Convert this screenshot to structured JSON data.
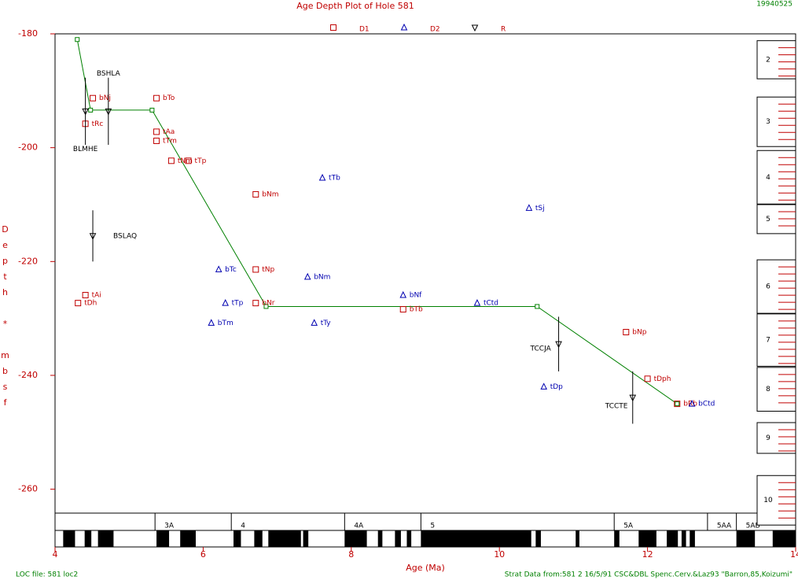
{
  "chart_data": {
    "type": "scatter",
    "title": "Age Depth Plot of Hole 581",
    "date_stamp": "19940525",
    "x_label": "Age (Ma)",
    "y_label": "Depth * mbsf",
    "xlim": [
      4,
      14
    ],
    "ylim": [
      -180,
      -264.2
    ],
    "xticks": [
      4,
      6,
      8,
      10,
      12,
      14
    ],
    "yticks": [
      -180,
      -200,
      -220,
      -240,
      -260
    ],
    "series": [
      {
        "name": "D1",
        "marker": "square",
        "color": "#c00000",
        "labels": [
          "bNj",
          "tRc",
          "bTo",
          "tAa",
          "tTm",
          "tNm",
          "tTp",
          "bNm",
          "tNp",
          "bNr",
          "tAi",
          "tDh",
          "bTb",
          "bNp",
          "tDph",
          "bRb"
        ],
        "x": [
          4.51,
          4.41,
          5.37,
          5.37,
          5.37,
          5.57,
          5.8,
          6.71,
          6.71,
          6.71,
          4.41,
          4.31,
          8.7,
          11.71,
          12.0,
          12.4
        ],
        "y": [
          -191.3,
          -195.8,
          -191.3,
          -197.2,
          -198.8,
          -202.3,
          -202.3,
          -208.2,
          -221.4,
          -227.3,
          -225.9,
          -227.3,
          -228.4,
          -232.4,
          -240.6,
          -245.0
        ]
      },
      {
        "name": "D2",
        "marker": "triangle-up",
        "color": "#0000b0",
        "labels": [
          "tTb",
          "tSj",
          "bTc",
          "tTp",
          "bTm",
          "bNm",
          "tTy",
          "bNf",
          "tCtd",
          "tDp",
          "bCtd"
        ],
        "x": [
          7.61,
          10.4,
          6.21,
          6.3,
          6.11,
          7.41,
          7.5,
          8.7,
          9.7,
          10.6,
          12.6
        ],
        "y": [
          -205.3,
          -210.6,
          -221.4,
          -227.3,
          -230.8,
          -222.7,
          -230.8,
          -225.9,
          -227.3,
          -242.0,
          -245.0
        ]
      },
      {
        "name": "R",
        "marker": "triangle-down",
        "color": "#000000",
        "labels": [
          "BSHLA",
          "BLMHE",
          "BSLAQ",
          "TCCJA",
          "TCCTE"
        ],
        "x": [
          4.72,
          4.41,
          4.51,
          10.8,
          11.8
        ],
        "y": [
          -193.6,
          -193.6,
          -215.5,
          -234.5,
          -243.9
        ],
        "y_error": [
          5.9,
          5.9,
          4.5,
          4.8,
          4.6
        ]
      }
    ],
    "correlation_line": {
      "color": "#008000",
      "x": [
        4.3,
        4.48,
        5.31,
        6.85,
        10.51,
        12.4
      ],
      "y": [
        -181.0,
        -193.4,
        -193.4,
        -227.9,
        -227.9,
        -245.0
      ]
    },
    "chrons": [
      {
        "name": "3A",
        "start": 5.35,
        "end": 6.38
      },
      {
        "name": "4",
        "start": 6.38,
        "end": 7.91
      },
      {
        "name": "4A",
        "start": 7.91,
        "end": 8.94
      },
      {
        "name": "5",
        "start": 8.94,
        "end": 11.55
      },
      {
        "name": "5A",
        "start": 11.55,
        "end": 12.81
      },
      {
        "name": "5AA",
        "start": 12.81,
        "end": 13.2
      },
      {
        "name": "5AB",
        "start": 13.2,
        "end": 14
      }
    ],
    "normal_polarity": [
      [
        4.11,
        4.27
      ],
      [
        4.4,
        4.49
      ],
      [
        4.58,
        4.79
      ],
      [
        5.37,
        5.54
      ],
      [
        5.69,
        5.9
      ],
      [
        6.41,
        6.51
      ],
      [
        6.69,
        6.8
      ],
      [
        6.88,
        7.32
      ],
      [
        7.35,
        7.42
      ],
      [
        7.91,
        8.21
      ],
      [
        8.36,
        8.42
      ],
      [
        8.59,
        8.67
      ],
      [
        8.75,
        8.81
      ],
      [
        8.94,
        10.43
      ],
      [
        10.49,
        10.56
      ],
      [
        11.03,
        11.08
      ],
      [
        11.55,
        11.62
      ],
      [
        11.88,
        12.12
      ],
      [
        12.26,
        12.41
      ],
      [
        12.46,
        12.52
      ],
      [
        12.57,
        12.64
      ],
      [
        13.2,
        13.45
      ],
      [
        13.69,
        14.0
      ]
    ],
    "cores": [
      {
        "label": "2",
        "top": -181.2,
        "bottom": -187.9
      },
      {
        "label": "3",
        "top": -191.1,
        "bottom": -199.8
      },
      {
        "label": "4",
        "top": -200.5,
        "bottom": -209.9
      },
      {
        "label": "5",
        "top": -210.0,
        "bottom": -215.1
      },
      {
        "label": "6",
        "top": -219.7,
        "bottom": -229.1
      },
      {
        "label": "7",
        "top": -229.2,
        "bottom": -238.4
      },
      {
        "label": "8",
        "top": -238.6,
        "bottom": -246.3
      },
      {
        "label": "9",
        "top": -248.3,
        "bottom": -253.7
      },
      {
        "label": "10",
        "top": -257.6,
        "bottom": -266.3
      }
    ],
    "footer_left": "LOC file: 581 loc2",
    "footer_right": "Strat Data from:581 2 16/5/91 CSC&DBL Spenc.Cerv.&Laz93 \"Barron,85,Koizumi\""
  }
}
